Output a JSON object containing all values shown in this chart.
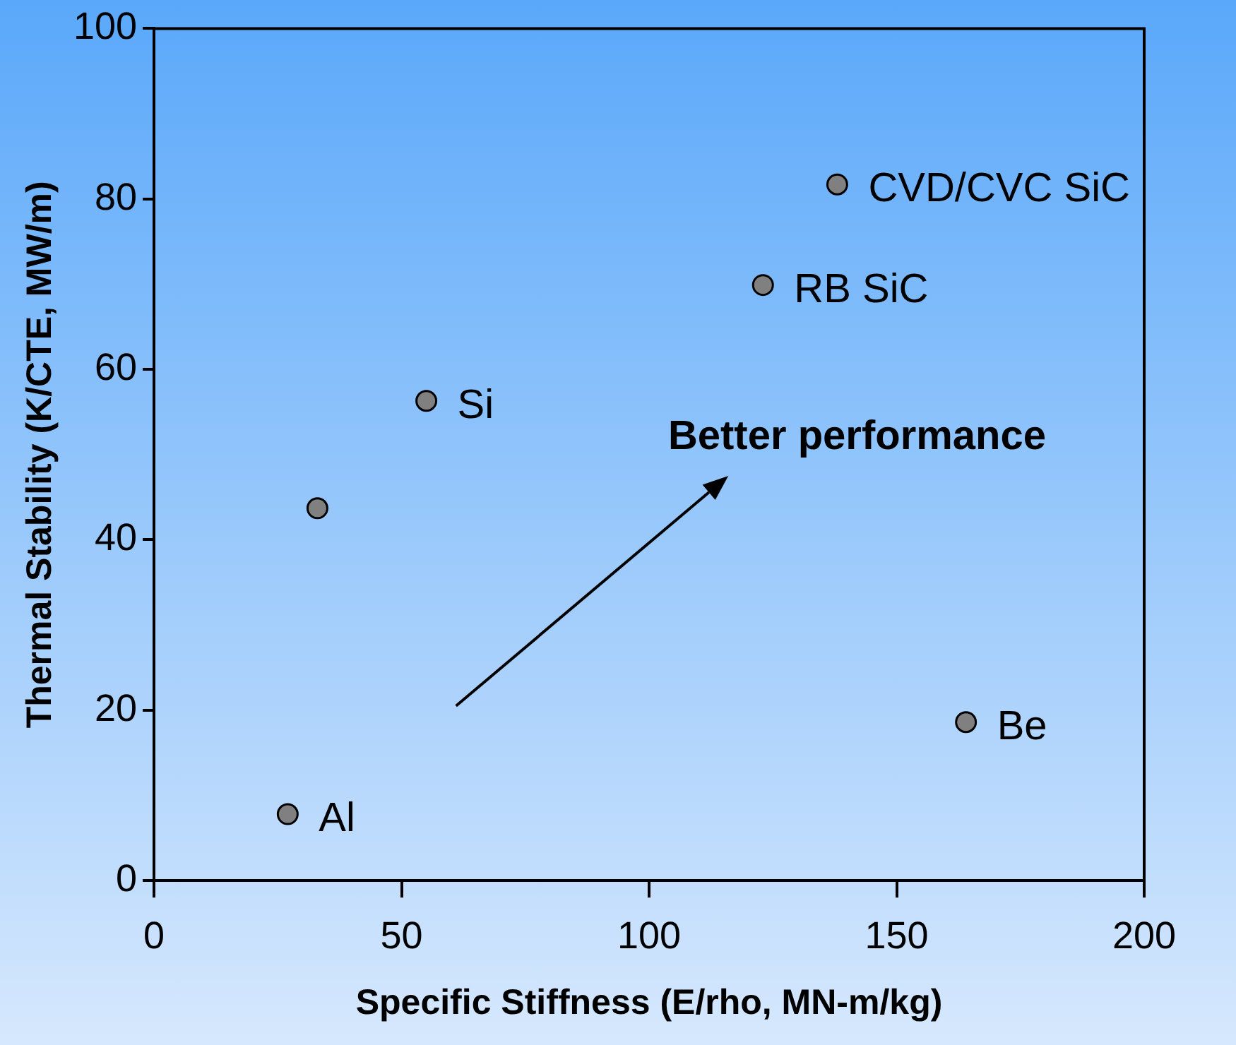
{
  "chart_data": {
    "type": "scatter",
    "xlabel": "Specific Stiffness (E/rho, MN-m/kg)",
    "ylabel": "Thermal Stability (K/CTE, MW/m)",
    "xlim": [
      0,
      200
    ],
    "xticks": [
      0,
      50,
      100,
      150,
      200
    ],
    "ylim": [
      0,
      100
    ],
    "yticks": [
      0,
      20,
      40,
      60,
      80,
      100
    ],
    "grid": false,
    "legend": false,
    "marker": "circle",
    "annotations": [
      "Better performance"
    ],
    "series": [
      {
        "name": "Al",
        "color": "#808080",
        "x": [
          27
        ],
        "values": [
          7.8
        ]
      },
      {
        "color": "#808080",
        "x": [
          33
        ],
        "values": [
          43.7
        ]
      },
      {
        "name": "Si",
        "color": "#808080",
        "x": [
          55
        ],
        "values": [
          56.3
        ]
      },
      {
        "name": "RB SiC",
        "color": "#808080",
        "x": [
          123
        ],
        "values": [
          69.9
        ]
      },
      {
        "name": "CVD/CVC SiC",
        "color": "#808080",
        "x": [
          138
        ],
        "values": [
          81.7
        ]
      },
      {
        "name": "Be",
        "color": "#808080",
        "x": [
          164
        ],
        "values": [
          18.6
        ]
      }
    ]
  }
}
